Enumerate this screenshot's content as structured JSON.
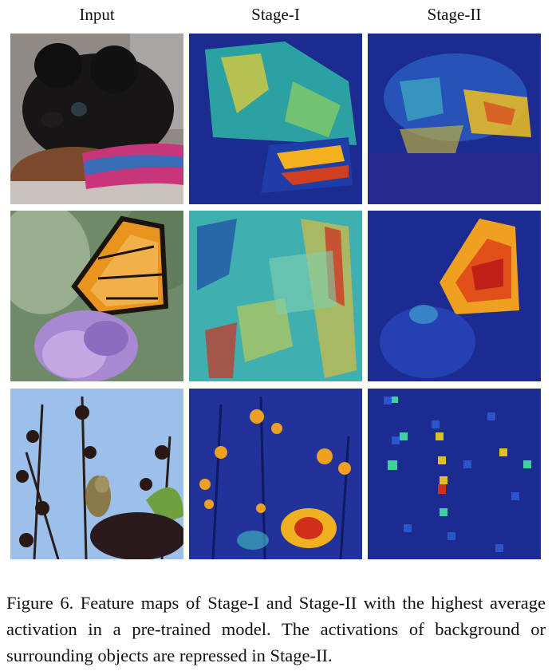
{
  "columns": [
    "Input",
    "Stage-I",
    "Stage-II"
  ],
  "caption": "Figure 6. Feature maps of Stage-I and Stage-II with the highest average activation in a pre-trained model. The activations of background or surrounding objects are repressed in Stage-II.",
  "rows": [
    {
      "subject": "puppy"
    },
    {
      "subject": "butterfly"
    },
    {
      "subject": "bird"
    }
  ],
  "colors": {
    "heatmap_low": "#1b2b8f",
    "heatmap_mid": "#2fc0a0",
    "heatmap_high": "#f0c020",
    "heatmap_peak": "#c0201a"
  }
}
